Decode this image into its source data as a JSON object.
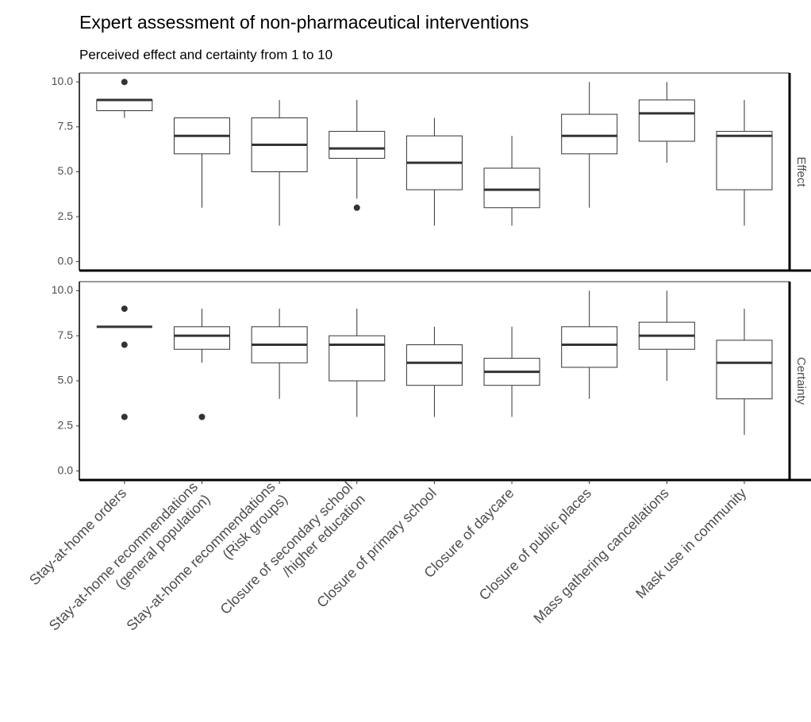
{
  "chart_data": [
    {
      "type": "boxplot",
      "title": "Expert assessment of non-pharmaceutical interventions",
      "subtitle": "Perceived effect and certainty from 1 to 10",
      "facet": "Effect",
      "ylim": [
        -0.5,
        10.5
      ],
      "yticks": [
        {
          "value": 0,
          "label": "0.0"
        },
        2.5,
        {
          "value": 5,
          "label": "5.0"
        },
        7.5,
        {
          "value": 10,
          "label": "10.0"
        }
      ],
      "boxes": [
        {
          "min": 8,
          "q1": 8.4,
          "median": 9,
          "q3": 9,
          "max": 9,
          "outliers": [
            10
          ]
        },
        {
          "min": 3,
          "q1": 6,
          "median": 7,
          "q3": 8,
          "max": 8,
          "outliers": []
        },
        {
          "min": 2,
          "q1": 5,
          "median": 6.5,
          "q3": 8,
          "max": 9,
          "outliers": []
        },
        {
          "min": 3.5,
          "q1": 5.75,
          "median": 6.3,
          "q3": 7.25,
          "max": 9,
          "outliers": [
            3
          ]
        },
        {
          "min": 2,
          "q1": 4,
          "median": 5.5,
          "q3": 7,
          "max": 8,
          "outliers": []
        },
        {
          "min": 2,
          "q1": 3,
          "median": 4,
          "q3": 5.2,
          "max": 7,
          "outliers": []
        },
        {
          "min": 3,
          "q1": 6,
          "median": 7,
          "q3": 8.2,
          "max": 10,
          "outliers": []
        },
        {
          "min": 5.5,
          "q1": 6.7,
          "median": 8.25,
          "q3": 9,
          "max": 10,
          "outliers": []
        },
        {
          "min": 2,
          "q1": 4,
          "median": 7,
          "q3": 7.25,
          "max": 9,
          "outliers": []
        }
      ]
    },
    {
      "type": "boxplot",
      "facet": "Certainty",
      "ylim": [
        -0.5,
        10.5
      ],
      "yticks": [
        {
          "value": 0,
          "label": "0.0"
        },
        2.5,
        {
          "value": 5,
          "label": "5.0"
        },
        7.5,
        {
          "value": 10,
          "label": "10.0"
        }
      ],
      "categories": [
        "Stay-at-home orders",
        "Stay-at-home recommendations\n(general population)",
        "Stay-at-home recommendations\n(Risk groups)",
        "Closure of secondary school\n/higher education",
        "Closure of primary school",
        "Closure of daycare",
        "Closure of public places",
        "Mass gathering cancellations",
        "Mask use in community"
      ],
      "boxes": [
        {
          "min": 8,
          "q1": 8,
          "median": 8,
          "q3": 8,
          "max": 8,
          "outliers": [
            9,
            7,
            3
          ]
        },
        {
          "min": 6,
          "q1": 6.75,
          "median": 7.5,
          "q3": 8,
          "max": 9,
          "outliers": [
            3
          ]
        },
        {
          "min": 4,
          "q1": 6,
          "median": 7,
          "q3": 8,
          "max": 9,
          "outliers": []
        },
        {
          "min": 3,
          "q1": 5,
          "median": 7,
          "q3": 7.5,
          "max": 9,
          "outliers": []
        },
        {
          "min": 3,
          "q1": 4.75,
          "median": 6,
          "q3": 7,
          "max": 8,
          "outliers": []
        },
        {
          "min": 3,
          "q1": 4.75,
          "median": 5.5,
          "q3": 6.25,
          "max": 8,
          "outliers": []
        },
        {
          "min": 4,
          "q1": 5.75,
          "median": 7,
          "q3": 8,
          "max": 10,
          "outliers": []
        },
        {
          "min": 5,
          "q1": 6.75,
          "median": 7.5,
          "q3": 8.25,
          "max": 10,
          "outliers": []
        },
        {
          "min": 2,
          "q1": 4,
          "median": 6,
          "q3": 7.25,
          "max": 9,
          "outliers": []
        }
      ]
    }
  ]
}
